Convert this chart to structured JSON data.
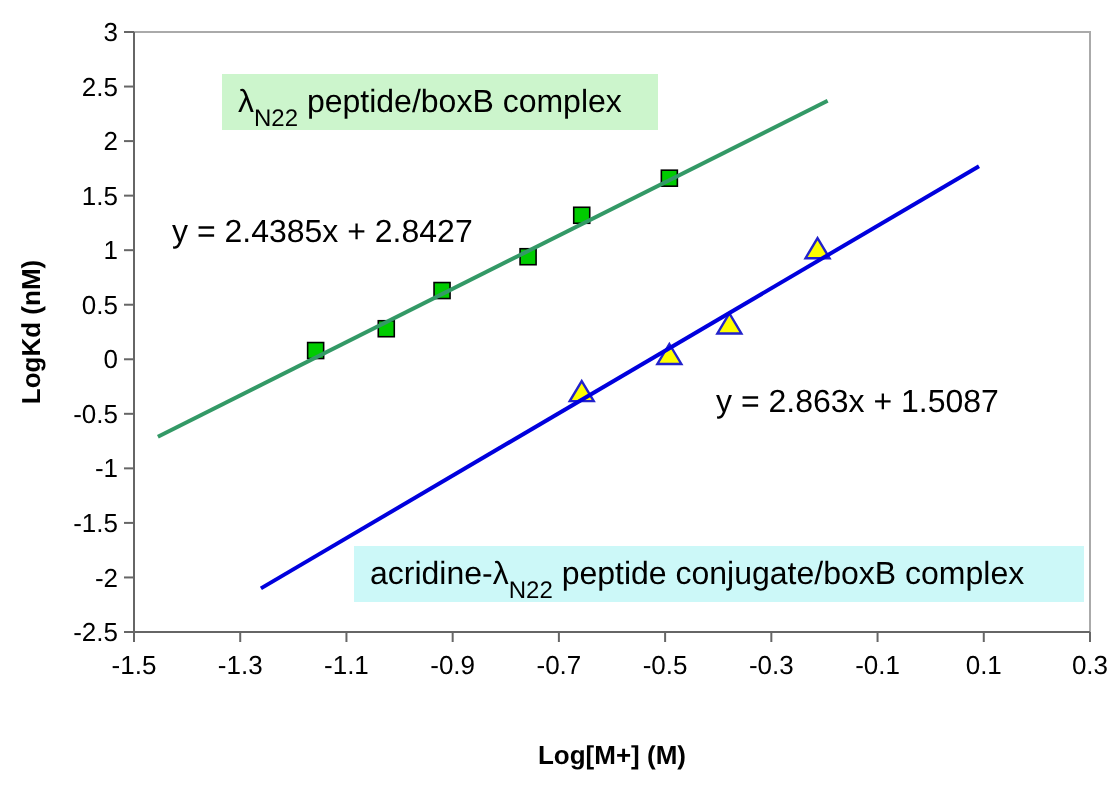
{
  "chart_data": {
    "type": "scatter",
    "xlabel": "Log[M+] (M)",
    "ylabel": "LogKd (nM)",
    "xlim": [
      -1.5,
      0.3
    ],
    "ylim": [
      -2.5,
      3
    ],
    "xticks": [
      -1.5,
      -1.3,
      -1.1,
      -0.9,
      -0.7,
      -0.5,
      -0.3,
      -0.1,
      0.1,
      0.3
    ],
    "yticks": [
      -2.5,
      -2,
      -1.5,
      -1,
      -0.5,
      0,
      0.5,
      1,
      1.5,
      2,
      2.5,
      3
    ],
    "grid": false,
    "series": [
      {
        "name": "λ$_{N22}$ peptide/boxB complex",
        "color": "#00cc00",
        "marker": "square",
        "x": [
          -1.158,
          -1.025,
          -0.92,
          -0.758,
          -0.657,
          -0.492
        ],
        "values": [
          0.08,
          0.28,
          0.63,
          0.94,
          1.32,
          1.66
        ]
      },
      {
        "color": "#ffff00",
        "marker": "triangle",
        "x": [
          -0.657,
          -0.492,
          -0.379,
          -0.213
        ],
        "values": [
          -0.31,
          0.03,
          0.31,
          1.0
        ]
      },
      {
        "type": "line",
        "color": "#339966",
        "marker": "none",
        "x": [
          -1.455,
          -0.194
        ],
        "values": [
          -0.71,
          2.37
        ]
      },
      {
        "name": "acridine-λ$_{N22}$ peptide conjugate/boxB complex",
        "type": "line",
        "color": "#0000dd",
        "marker": "none",
        "x": [
          -1.261,
          0.091
        ],
        "values": [
          -2.1,
          1.77
        ]
      }
    ],
    "annotations": [
      "y = 2.4385x + 2.8427",
      "y = 2.863x + 1.5087"
    ]
  }
}
